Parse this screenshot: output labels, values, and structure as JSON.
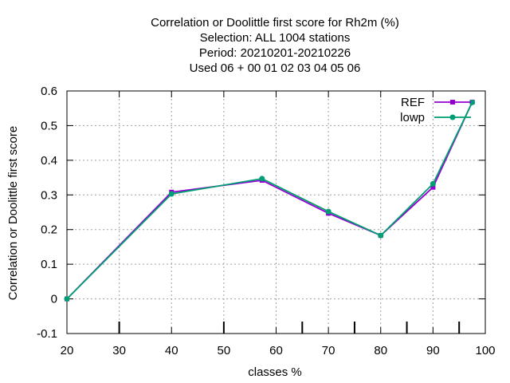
{
  "chart_data": {
    "type": "line",
    "title_lines": [
      "Correlation or Doolittle first score  for Rh2m (%)",
      "Selection: ALL   1004 stations",
      "Period: 20210201-20210226",
      "Used  06  + 00 01 02 03 04 05 06"
    ],
    "xlabel": "classes %",
    "ylabel": "Correlation or Doolittle first score",
    "xlim": [
      20,
      100
    ],
    "ylim": [
      -0.1,
      0.6
    ],
    "x_ticks": [
      20,
      30,
      40,
      50,
      60,
      70,
      80,
      90,
      100
    ],
    "y_ticks": [
      -0.1,
      0,
      0.1,
      0.2,
      0.3,
      0.4,
      0.5,
      0.6
    ],
    "y_tick_labels": [
      "-0.1",
      "0",
      "0.1",
      "0.2",
      "0.3",
      "0.4",
      "0.5",
      "0.6"
    ],
    "x_class_marks": [
      30,
      50,
      65,
      75,
      85,
      95
    ],
    "grid": true,
    "legend_position": "top-right",
    "series": [
      {
        "name": "REF",
        "color": "#9400d3",
        "marker": "square",
        "x": [
          20,
          40,
          57.3,
          70,
          80,
          90,
          97.5
        ],
        "y": [
          0.0,
          0.308,
          0.342,
          0.247,
          0.183,
          0.322,
          0.568
        ]
      },
      {
        "name": "lowp",
        "color": "#009e73",
        "marker": "circle",
        "x": [
          20,
          40,
          57.3,
          70,
          80,
          90,
          97.5
        ],
        "y": [
          0.0,
          0.303,
          0.347,
          0.252,
          0.183,
          0.332,
          0.567
        ]
      }
    ]
  }
}
